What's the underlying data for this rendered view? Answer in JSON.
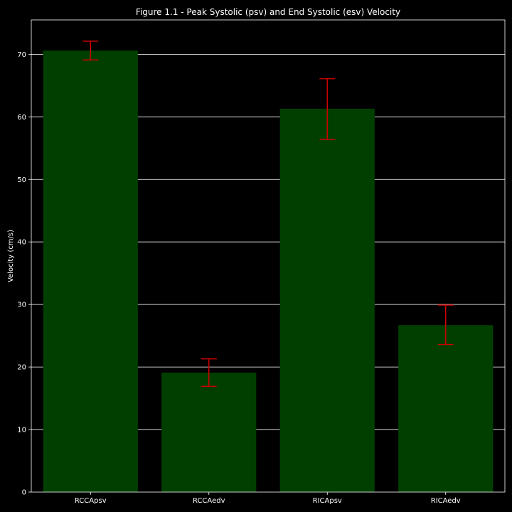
{
  "chart_data": {
    "type": "bar",
    "title": "Figure 1.1 - Peak Systolic (psv) and End Systolic (esv) Velocity",
    "xlabel": "",
    "ylabel": "Velocity (cm/s)",
    "categories": [
      "RCCApsv",
      "RCCAedv",
      "RICApsv",
      "RICAedv"
    ],
    "values": [
      70.6,
      19.1,
      61.3,
      26.7
    ],
    "error_low": [
      69.1,
      16.9,
      56.4,
      23.6
    ],
    "error_high": [
      72.1,
      21.3,
      66.1,
      29.9
    ],
    "ylim": [
      0,
      75.5
    ],
    "yticks": [
      0,
      10,
      20,
      30,
      40,
      50,
      60,
      70
    ],
    "grid": "horizontal",
    "colors": {
      "background": "#000000",
      "bar": "#003f00",
      "error_bar": "#cc0000",
      "grid": "#ffffff",
      "axis": "#ffffff",
      "text": "#ffffff"
    }
  }
}
